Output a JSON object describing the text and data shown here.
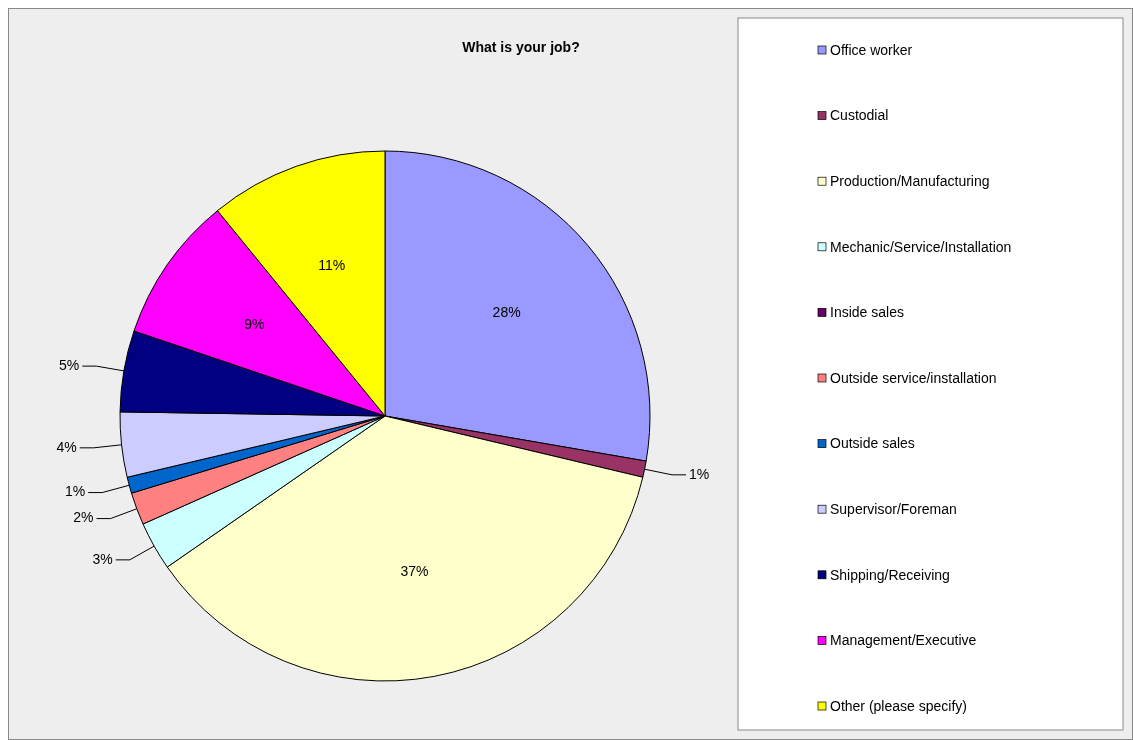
{
  "chart_data": {
    "type": "pie",
    "title": "What is your job?",
    "categories": [
      "Office worker",
      "Custodial",
      "Production/Manufacturing",
      "Mechanic/Service/Installation",
      "Inside sales",
      "Outside service/installation",
      "Outside sales",
      "Supervisor/Foreman",
      "Shipping/Receiving",
      "Management/Executive",
      "Other (please specify)"
    ],
    "values": [
      28,
      1,
      37,
      3,
      0,
      2,
      1,
      4,
      5,
      9,
      11
    ],
    "value_labels": [
      "28%",
      "1%",
      "37%",
      "3%",
      null,
      "2%",
      "1%",
      "4%",
      "5%",
      "9%",
      "11%"
    ],
    "colors": [
      "#9999ff",
      "#993366",
      "#ffffcc",
      "#ccffff",
      "#660066",
      "#ff8080",
      "#0066cc",
      "#ccccff",
      "#000080",
      "#ff00ff",
      "#ffff00"
    ],
    "legend": "right"
  }
}
